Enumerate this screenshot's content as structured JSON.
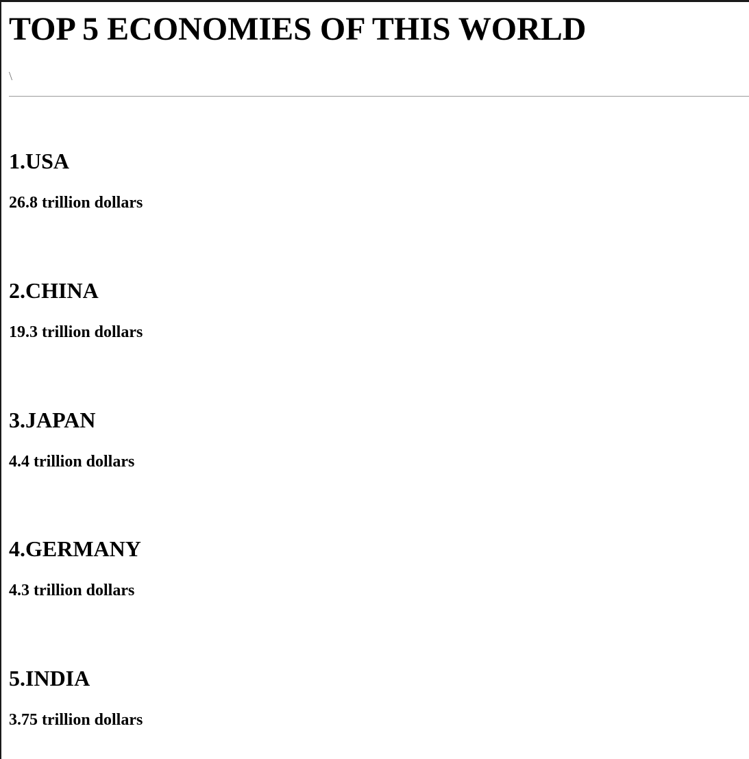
{
  "page": {
    "title": "TOP 5 ECONOMIES OF THIS WORLD",
    "stray_text": "\\"
  },
  "ranking": [
    {
      "name": "1.USA",
      "value": "26.8 trillion dollars"
    },
    {
      "name": "2.CHINA",
      "value": "19.3 trillion dollars"
    },
    {
      "name": "3.JAPAN",
      "value": "4.4 trillion dollars"
    },
    {
      "name": "4.GERMANY",
      "value": "4.3 trillion dollars"
    },
    {
      "name": "5.INDIA",
      "value": "3.75 trillion dollars"
    }
  ]
}
